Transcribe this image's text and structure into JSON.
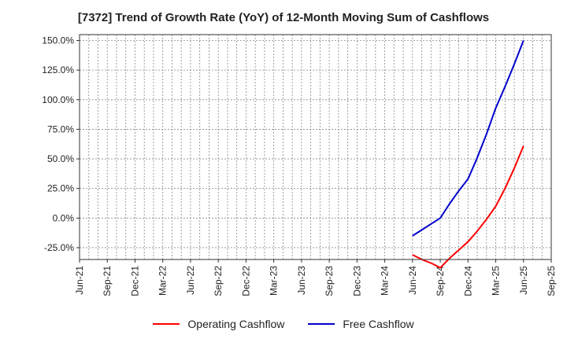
{
  "title": "[7372]  Trend of Growth Rate (YoY) of 12-Month Moving Sum of Cashflows",
  "chart_data": {
    "type": "line",
    "title": "[7372]  Trend of Growth Rate (YoY) of 12-Month Moving Sum of Cashflows",
    "x": [
      "Jun-21",
      "Sep-21",
      "Dec-21",
      "Mar-22",
      "Jun-22",
      "Sep-22",
      "Dec-22",
      "Mar-23",
      "Jun-23",
      "Sep-23",
      "Dec-23",
      "Mar-24",
      "Jun-24",
      "Sep-24",
      "Dec-24",
      "Mar-25",
      "Jun-25",
      "Sep-25"
    ],
    "ylim": [
      -35,
      155
    ],
    "yticks": [
      150,
      125,
      100,
      75,
      50,
      25,
      0,
      -25
    ],
    "ytick_labels": [
      "150.0%",
      "125.0%",
      "100.0%",
      "75.0%",
      "50.0%",
      "25.0%",
      "0.0%",
      "-25.0%"
    ],
    "grid": true,
    "legend_position": "bottom",
    "series": [
      {
        "name": "Operating Cashflow",
        "color": "#ff0000",
        "points": [
          [
            "Jun-24",
            -31
          ],
          [
            "Jul-24",
            -35
          ],
          [
            "Aug-24",
            -38
          ],
          [
            "Sep-24",
            -42
          ],
          [
            "Oct-24",
            -34
          ],
          [
            "Nov-24",
            -27
          ],
          [
            "Dec-24",
            -20
          ],
          [
            "Jan-25",
            -11
          ],
          [
            "Feb-25",
            -1
          ],
          [
            "Mar-25",
            10
          ],
          [
            "Apr-25",
            25
          ],
          [
            "May-25",
            42
          ],
          [
            "Jun-25",
            61
          ]
        ]
      },
      {
        "name": "Free Cashflow",
        "color": "#0000cc",
        "points": [
          [
            "Jun-24",
            -15
          ],
          [
            "Jul-24",
            -10
          ],
          [
            "Aug-24",
            -5
          ],
          [
            "Sep-24",
            0
          ],
          [
            "Oct-24",
            12
          ],
          [
            "Nov-24",
            23
          ],
          [
            "Dec-24",
            33
          ],
          [
            "Jan-25",
            51
          ],
          [
            "Feb-25",
            71
          ],
          [
            "Mar-25",
            93
          ],
          [
            "Apr-25",
            111
          ],
          [
            "May-25",
            130
          ],
          [
            "Jun-25",
            150
          ]
        ]
      }
    ]
  }
}
